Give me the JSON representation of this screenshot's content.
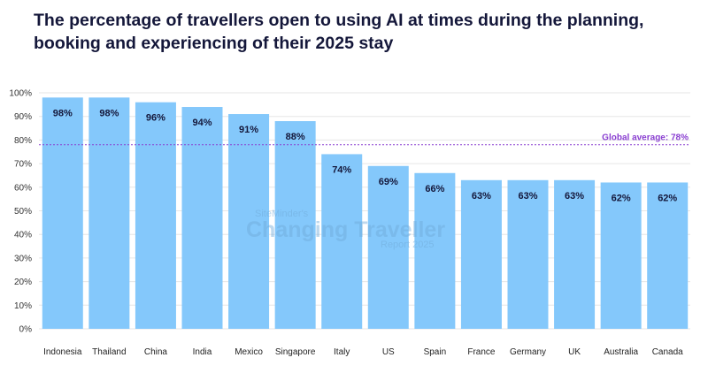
{
  "chart_data": {
    "type": "bar",
    "title": "The percentage of travellers open to using AI at times during the planning, booking and experiencing of their 2025 stay",
    "categories": [
      "Indonesia",
      "Thailand",
      "China",
      "India",
      "Mexico",
      "Singapore",
      "Italy",
      "US",
      "Spain",
      "France",
      "Germany",
      "UK",
      "Australia",
      "Canada"
    ],
    "values": [
      98,
      98,
      96,
      94,
      91,
      88,
      74,
      69,
      66,
      63,
      63,
      63,
      62,
      62
    ],
    "data_labels": [
      "98%",
      "98%",
      "96%",
      "94%",
      "91%",
      "88%",
      "74%",
      "69%",
      "66%",
      "63%",
      "63%",
      "63%",
      "62%",
      "62%"
    ],
    "ylim": [
      0,
      100
    ],
    "yticks": [
      "0%",
      "10%",
      "20%",
      "30%",
      "40%",
      "50%",
      "60%",
      "70%",
      "80%",
      "90%",
      "100%"
    ],
    "grid": true,
    "reference_line": {
      "label": "Global average: 78%",
      "value": 78,
      "color": "#8a3fd1"
    },
    "bar_color": "#84c8fb",
    "watermark": {
      "line1": "SiteMinder's",
      "line2": "Changing Traveller",
      "line3": "Report 2025"
    }
  }
}
